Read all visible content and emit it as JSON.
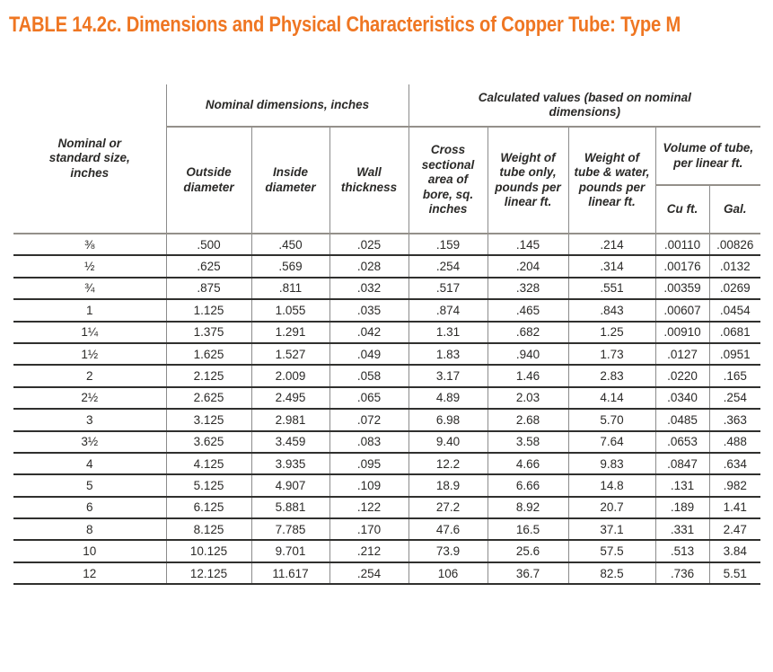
{
  "title": "TABLE 14.2c. Dimensions and Physical Characteristics of Copper Tube: Type M",
  "colors": {
    "title_orange": "#EF7622",
    "row_line": "#30302e",
    "grid_line": "#8b8b8b"
  },
  "table": {
    "header": {
      "size_col": "Nominal or standard size, inches",
      "group_nominal": "Nominal dimensions, inches",
      "group_calculated": "Calculated values (based on nominal dimensions)",
      "col_outside": "Outside diameter",
      "col_inside": "Inside diameter",
      "col_wall": "Wall thickness",
      "col_cross": "Cross sectional area of bore, sq. inches",
      "col_weight_tube": "Weight of tube only, pounds per linear ft.",
      "col_weight_water": "Weight of tube & water, pounds per linear ft.",
      "col_volume": "Volume of tube, per linear ft.",
      "col_cuft": "Cu ft.",
      "col_gal": "Gal."
    },
    "rows": [
      [
        "⅜",
        ".500",
        ".450",
        ".025",
        ".159",
        ".145",
        ".214",
        ".00110",
        ".00826"
      ],
      [
        "½",
        ".625",
        ".569",
        ".028",
        ".254",
        ".204",
        ".314",
        ".00176",
        ".0132"
      ],
      [
        "¾",
        ".875",
        ".811",
        ".032",
        ".517",
        ".328",
        ".551",
        ".00359",
        ".0269"
      ],
      [
        "1",
        "1.125",
        "1.055",
        ".035",
        ".874",
        ".465",
        ".843",
        ".00607",
        ".0454"
      ],
      [
        "1¼",
        "1.375",
        "1.291",
        ".042",
        "1.31",
        ".682",
        "1.25",
        ".00910",
        ".0681"
      ],
      [
        "1½",
        "1.625",
        "1.527",
        ".049",
        "1.83",
        ".940",
        "1.73",
        ".0127",
        ".0951"
      ],
      [
        "2",
        "2.125",
        "2.009",
        ".058",
        "3.17",
        "1.46",
        "2.83",
        ".0220",
        ".165"
      ],
      [
        "2½",
        "2.625",
        "2.495",
        ".065",
        "4.89",
        "2.03",
        "4.14",
        ".0340",
        ".254"
      ],
      [
        "3",
        "3.125",
        "2.981",
        ".072",
        "6.98",
        "2.68",
        "5.70",
        ".0485",
        ".363"
      ],
      [
        "3½",
        "3.625",
        "3.459",
        ".083",
        "9.40",
        "3.58",
        "7.64",
        ".0653",
        ".488"
      ],
      [
        "4",
        "4.125",
        "3.935",
        ".095",
        "12.2",
        "4.66",
        "9.83",
        ".0847",
        ".634"
      ],
      [
        "5",
        "5.125",
        "4.907",
        ".109",
        "18.9",
        "6.66",
        "14.8",
        ".131",
        ".982"
      ],
      [
        "6",
        "6.125",
        "5.881",
        ".122",
        "27.2",
        "8.92",
        "20.7",
        ".189",
        "1.41"
      ],
      [
        "8",
        "8.125",
        "7.785",
        ".170",
        "47.6",
        "16.5",
        "37.1",
        ".331",
        "2.47"
      ],
      [
        "10",
        "10.125",
        "9.701",
        ".212",
        "73.9",
        "25.6",
        "57.5",
        ".513",
        "3.84"
      ],
      [
        "12",
        "12.125",
        "11.617",
        ".254",
        "106",
        "36.7",
        "82.5",
        ".736",
        "5.51"
      ]
    ]
  }
}
